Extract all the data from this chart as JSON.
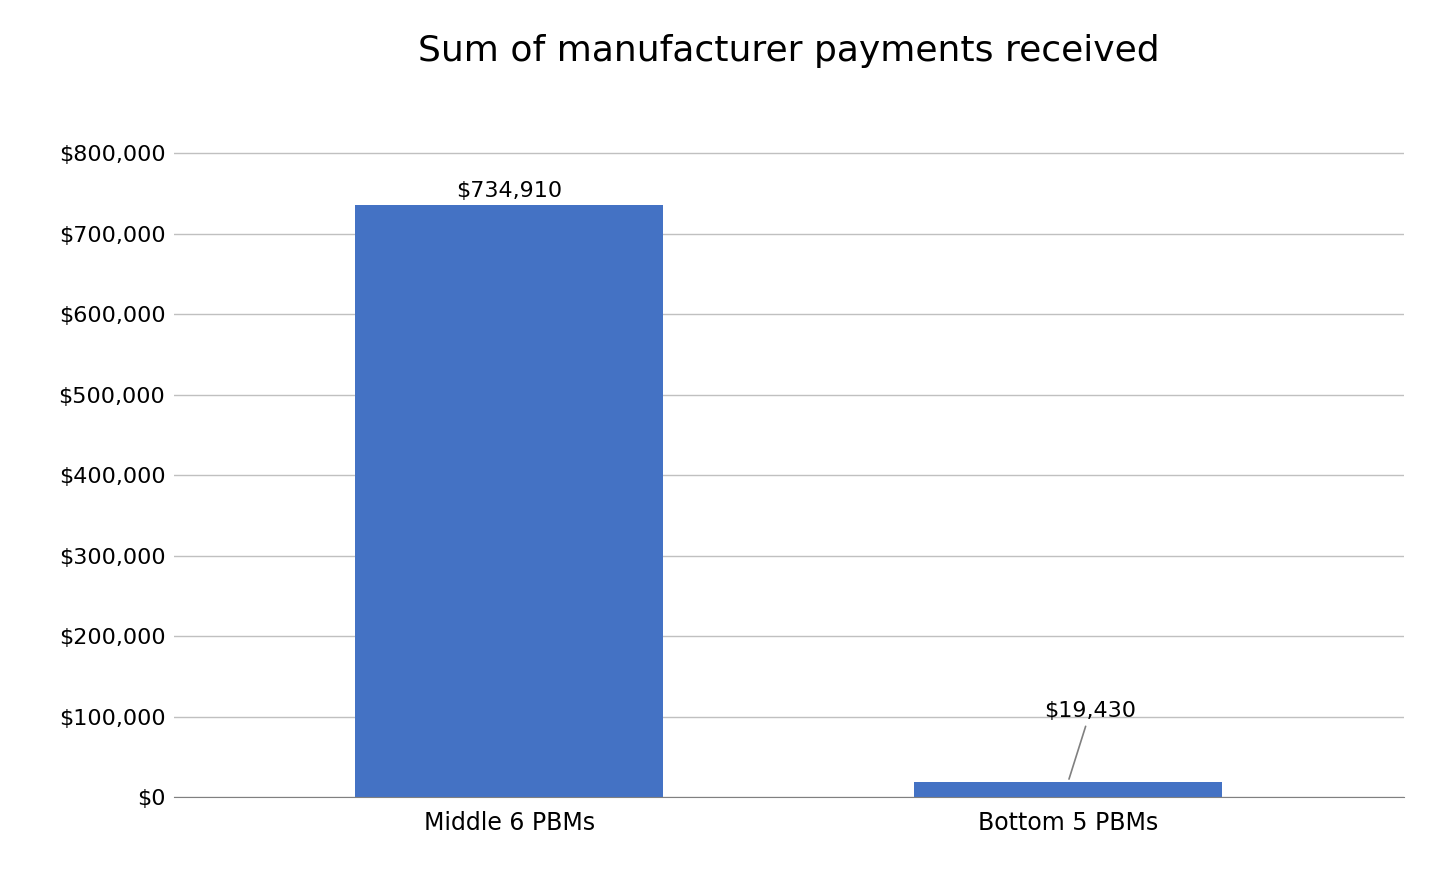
{
  "title": "Sum of manufacturer payments received",
  "categories": [
    "Middle 6 PBMs",
    "Bottom 5 PBMs"
  ],
  "values": [
    734910,
    19430
  ],
  "bar_colors": [
    "#4472C4",
    "#4472C4"
  ],
  "bar_labels": [
    "$734,910",
    "$19,430"
  ],
  "ylim": [
    0,
    880000
  ],
  "yticks": [
    0,
    100000,
    200000,
    300000,
    400000,
    500000,
    600000,
    700000,
    800000
  ],
  "ytick_labels": [
    "$0",
    "$100,000",
    "$200,000",
    "$300,000",
    "$400,000",
    "$500,000",
    "$600,000",
    "$700,000",
    "$800,000"
  ],
  "title_fontsize": 26,
  "tick_fontsize": 16,
  "label_fontsize": 16,
  "background_color": "#FFFFFF",
  "grid_color": "#C0C0C0",
  "bar_width": 0.55,
  "xlim_left": -0.6,
  "xlim_right": 1.6
}
